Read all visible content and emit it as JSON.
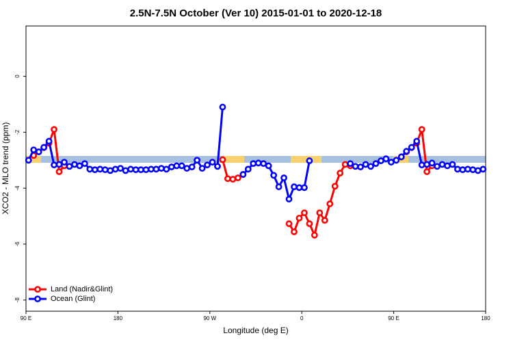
{
  "chart_data": {
    "type": "line",
    "title": "2.5N-7.5N October (Ver 10)   2015-01-01 to 2020-12-18",
    "x_label": "Longitude (deg E)",
    "y_label": "XCO2 - MLO trend (ppm)",
    "xlim": [
      90,
      540
    ],
    "xticks": [
      {
        "value": 90,
        "label": "90 E"
      },
      180,
      {
        "value": 270,
        "label": "90 W"
      },
      {
        "value": 360,
        "label": "0"
      },
      {
        "value": 450,
        "label": "90 E"
      },
      {
        "value": 540,
        "label": "180"
      }
    ],
    "ylim": [
      -8.4,
      1.8
    ],
    "yticks": [
      0,
      -2,
      -4,
      -6,
      -8
    ],
    "legend": "bottom-left",
    "x": [
      92.5,
      97.5,
      102.5,
      107.5,
      112.5,
      117.5,
      122.5,
      127.5,
      132.5,
      137.5,
      142.5,
      147.5,
      152.5,
      157.5,
      162.5,
      167.5,
      172.5,
      177.5,
      182.5,
      187.5,
      192.5,
      197.5,
      202.5,
      207.5,
      212.5,
      217.5,
      222.5,
      227.5,
      232.5,
      237.5,
      242.5,
      247.5,
      252.5,
      257.5,
      262.5,
      267.5,
      272.5,
      277.5,
      282.5,
      287.5,
      292.5,
      297.5,
      302.5,
      307.5,
      312.5,
      317.5,
      322.5,
      327.5,
      332.5,
      337.5,
      342.5,
      347.5,
      352.5,
      357.5,
      362.5,
      367.5,
      372.5,
      377.5,
      382.5,
      387.5,
      392.5,
      397.5,
      402.5,
      407.5,
      412.5,
      417.5,
      422.5,
      427.5,
      432.5,
      437.5,
      442.5,
      447.5,
      452.5,
      457.5,
      462.5,
      467.5,
      472.5,
      477.5,
      482.5,
      487.5,
      492.5,
      497.5,
      502.5,
      507.5,
      512.5,
      517.5,
      522.5,
      527.5,
      532.5,
      537.5
    ],
    "series": [
      {
        "name": "Land (Nadir&Glint)",
        "color": "#ff0000",
        "values": [
          null,
          -2.83,
          -2.7,
          -2.55,
          -2.39,
          -1.9,
          -3.41,
          -3.2,
          null,
          null,
          null,
          null,
          null,
          null,
          null,
          null,
          null,
          null,
          null,
          null,
          null,
          null,
          null,
          null,
          null,
          null,
          null,
          null,
          null,
          null,
          null,
          null,
          null,
          null,
          null,
          null,
          null,
          null,
          -2.98,
          -3.66,
          -3.68,
          -3.63,
          -3.51,
          null,
          null,
          null,
          null,
          null,
          null,
          null,
          null,
          -5.27,
          -5.56,
          -5.07,
          -4.88,
          -5.27,
          -5.68,
          -4.88,
          -5.15,
          -4.56,
          -3.93,
          -3.46,
          -3.15,
          -3.2,
          null,
          null,
          null,
          null,
          null,
          null,
          null,
          null,
          null,
          -2.88,
          -2.7,
          -2.55,
          -2.39,
          -1.9,
          -3.41,
          -3.2,
          null,
          null,
          null,
          null,
          null,
          null,
          null,
          null,
          null,
          null
        ]
      },
      {
        "name": "Ocean (Glint)",
        "color": "#0000ff",
        "values": [
          -3.0,
          -2.63,
          -2.7,
          -2.54,
          -2.32,
          -3.17,
          -3.15,
          -3.07,
          -3.22,
          -3.15,
          -3.2,
          -3.12,
          -3.32,
          -3.34,
          -3.32,
          -3.34,
          -3.37,
          -3.32,
          -3.29,
          -3.37,
          -3.32,
          -3.34,
          -3.34,
          -3.34,
          -3.32,
          -3.32,
          -3.29,
          -3.32,
          -3.24,
          -3.2,
          -3.2,
          -3.29,
          -3.24,
          -3.0,
          -3.29,
          -3.17,
          -3.07,
          -3.22,
          -1.1,
          null,
          null,
          null,
          -3.51,
          -3.32,
          -3.12,
          -3.1,
          -3.12,
          -3.2,
          -3.54,
          -3.95,
          -3.63,
          -4.39,
          -3.95,
          -3.98,
          -3.98,
          -3.02,
          null,
          null,
          null,
          null,
          null,
          null,
          null,
          -3.12,
          -3.22,
          -3.24,
          -3.15,
          -3.22,
          -3.12,
          -3.02,
          -2.95,
          -3.07,
          -3.0,
          -2.88,
          -2.68,
          -2.54,
          -2.32,
          -3.17,
          -3.15,
          -3.1,
          -3.22,
          -3.15,
          -3.2,
          -3.15,
          -3.32,
          -3.34,
          -3.32,
          -3.34,
          -3.37,
          -3.32
        ]
      }
    ]
  }
}
